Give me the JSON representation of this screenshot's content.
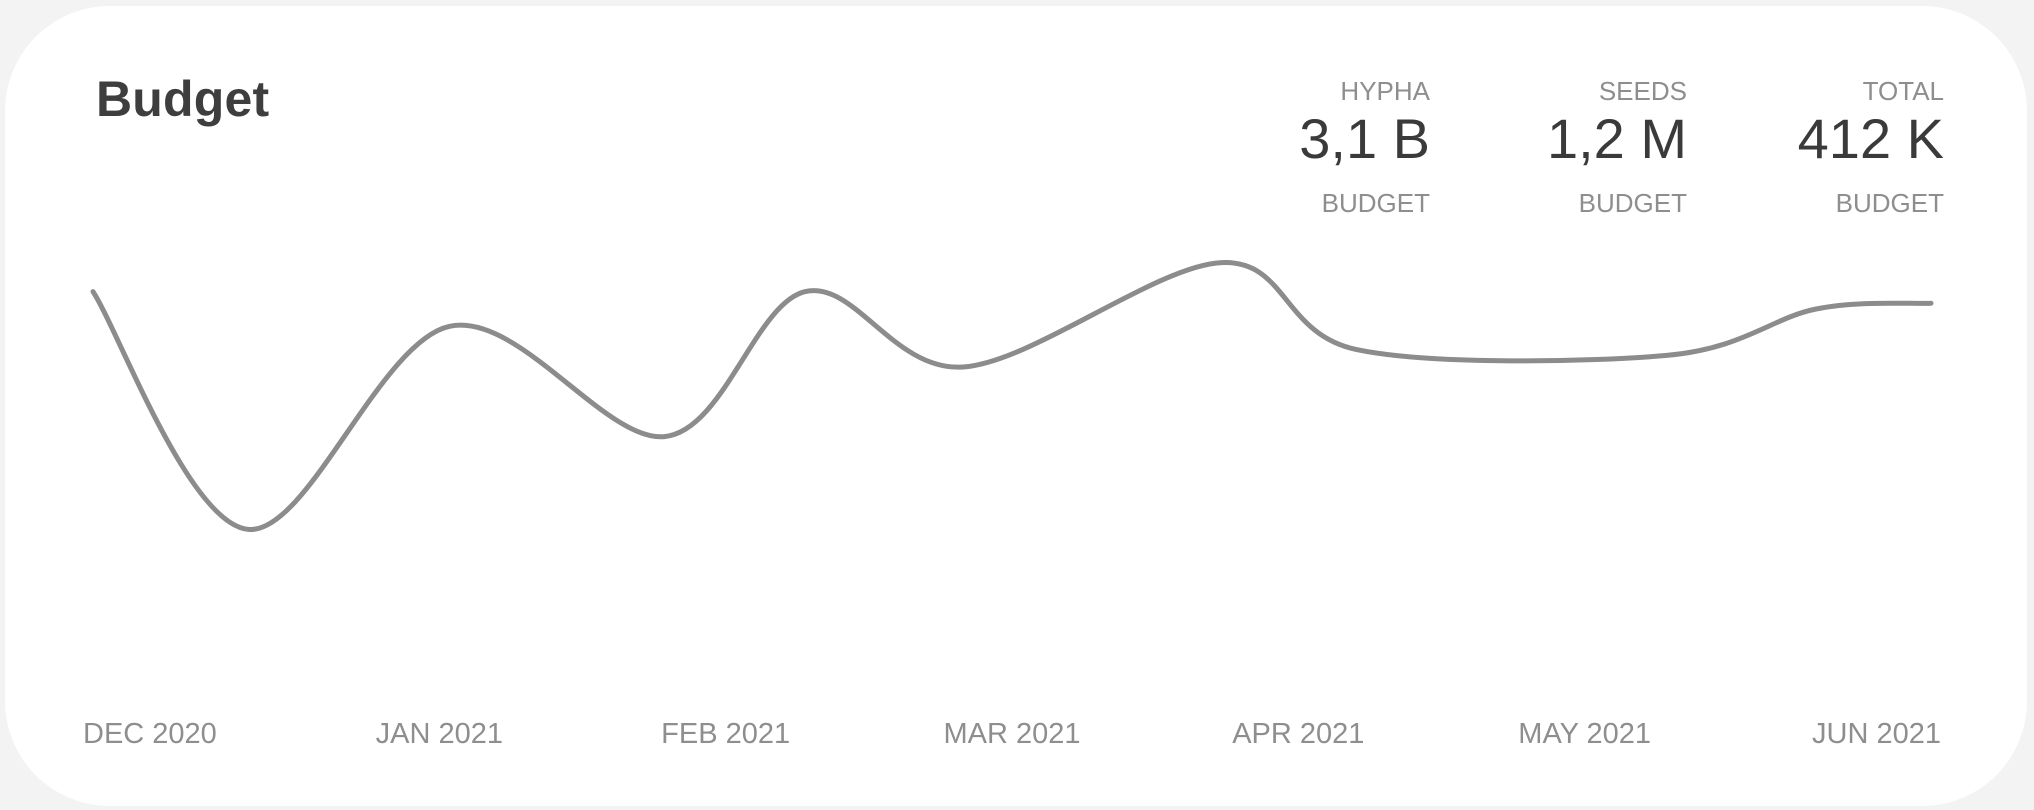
{
  "card": {
    "title": "Budget"
  },
  "stats": [
    {
      "label": "HYPHA",
      "value": "3,1 B",
      "sublabel": "BUDGET"
    },
    {
      "label": "SEEDS",
      "value": "1,2 M",
      "sublabel": "BUDGET"
    },
    {
      "label": "TOTAL",
      "value": "412 K",
      "sublabel": "BUDGET"
    }
  ],
  "chart_data": {
    "type": "line",
    "title": "Budget",
    "xlabel": "",
    "ylabel": "",
    "categories": [
      "DEC 2020",
      "JAN 2021",
      "FEB 2021",
      "MAR 2021",
      "APR 2021",
      "MAY 2021",
      "JUN 2021"
    ],
    "x": [
      0,
      0.54,
      1.24,
      1.99,
      2.48,
      3.03,
      3.93,
      4.4,
      5.48,
      6.0,
      6.4
    ],
    "x_note": "",
    "series": [
      {
        "values": [
          68,
          27,
          62,
          43,
          68,
          55,
          73,
          58,
          57,
          65,
          66
        ]
      }
    ],
    "ylim": [
      0,
      100
    ],
    "grid": false,
    "legend": "none",
    "colors": {
      "line": "#8c8c8c",
      "text": "#8e8e8e"
    }
  }
}
